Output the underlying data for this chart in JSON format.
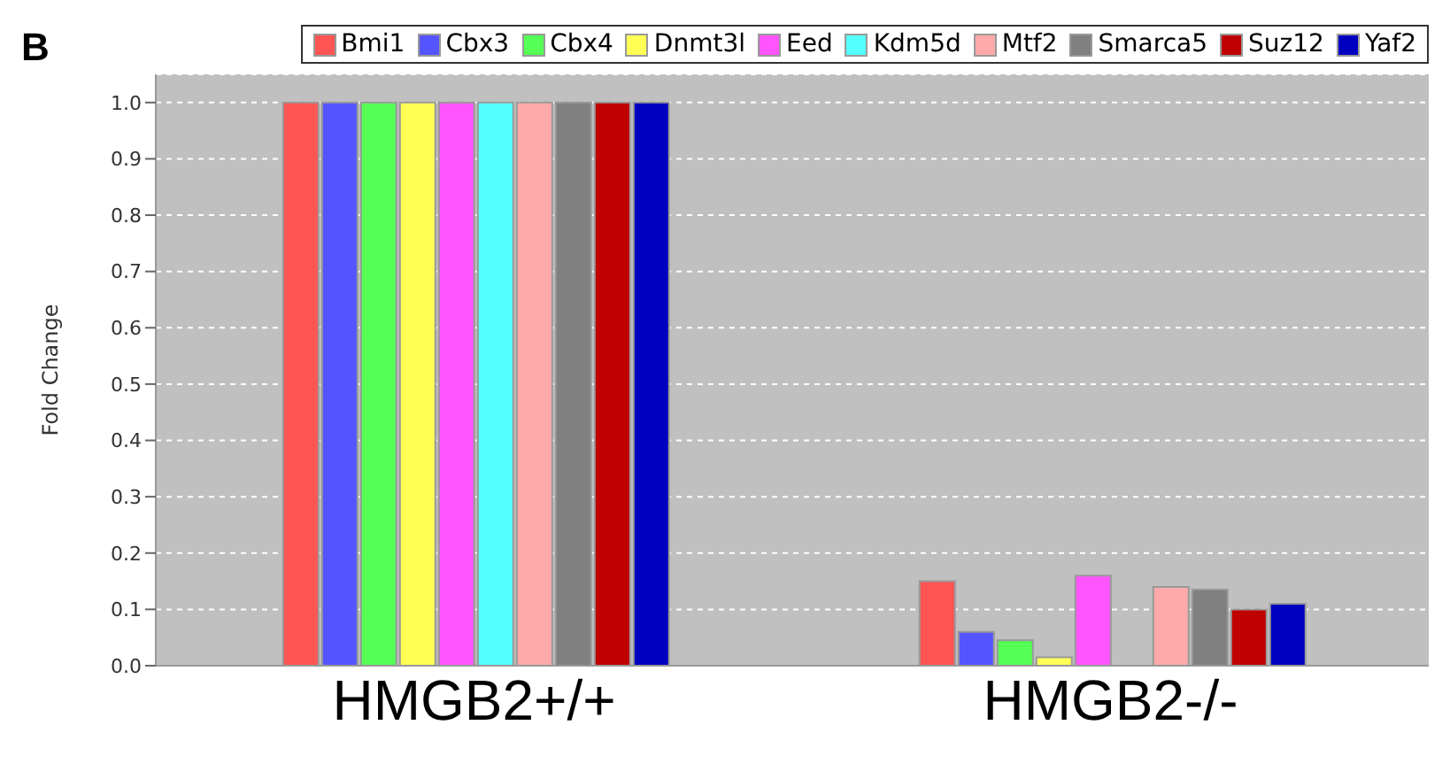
{
  "chart_data": {
    "type": "bar",
    "title": "B",
    "ylabel": "Fold Change",
    "categories": [
      "HMGB2+/+",
      "HMGB2-/-"
    ],
    "series": [
      {
        "name": "Bmi1",
        "color": "#ff5555",
        "values": [
          1.0,
          0.15
        ]
      },
      {
        "name": "Cbx3",
        "color": "#5555ff",
        "values": [
          1.0,
          0.06
        ]
      },
      {
        "name": "Cbx4",
        "color": "#55ff55",
        "values": [
          1.0,
          0.045
        ]
      },
      {
        "name": "Dnmt3l",
        "color": "#ffff55",
        "values": [
          1.0,
          0.015
        ]
      },
      {
        "name": "Eed",
        "color": "#ff55ff",
        "values": [
          1.0,
          0.16
        ]
      },
      {
        "name": "Kdm5d",
        "color": "#55ffff",
        "values": [
          1.0,
          null
        ]
      },
      {
        "name": "Mtf2",
        "color": "#ffaaaa",
        "values": [
          1.0,
          0.14
        ]
      },
      {
        "name": "Smarca5",
        "color": "#808080",
        "values": [
          1.0,
          0.135
        ]
      },
      {
        "name": "Suz12",
        "color": "#c00000",
        "values": [
          1.0,
          0.1
        ]
      },
      {
        "name": "Yaf2",
        "color": "#0000c0",
        "values": [
          1.0,
          0.11
        ]
      }
    ],
    "ylim": [
      0,
      1.05
    ],
    "yticks": [
      {
        "value": 0,
        "label": "0.0"
      },
      0.1,
      0.2,
      0.3,
      0.4,
      0.5,
      0.6,
      0.7,
      0.8,
      0.9,
      {
        "value": 1,
        "label": "1.0"
      }
    ],
    "grid": "y",
    "legend": "top right"
  }
}
